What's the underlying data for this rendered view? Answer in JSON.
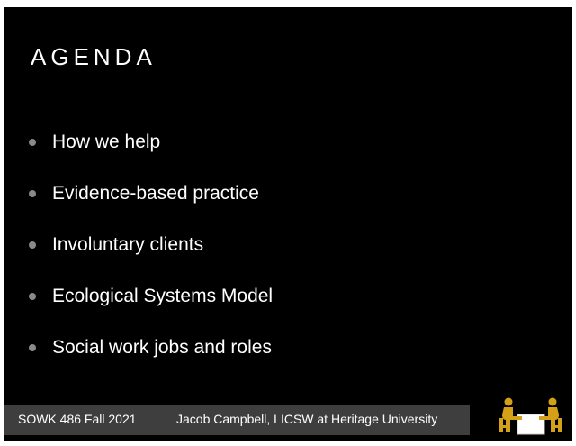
{
  "slide": {
    "title": "AGENDA",
    "bullets": [
      "How we help",
      "Evidence-based practice",
      "Involuntary clients",
      "Ecological Systems Model",
      "Social work jobs and roles"
    ]
  },
  "footer": {
    "course": "SOWK 486 Fall 2021",
    "author": "Jacob Campbell, LICSW at Heritage University"
  },
  "logo": {
    "icon": "two-people-at-table-icon",
    "colors": {
      "figures": "#d4a017",
      "table": "#ffffff"
    }
  },
  "colors": {
    "slide_background": "#000000",
    "text": "#ffffff",
    "bullet": "#8a8a8a",
    "footer_bar": "#3e3e3e"
  }
}
